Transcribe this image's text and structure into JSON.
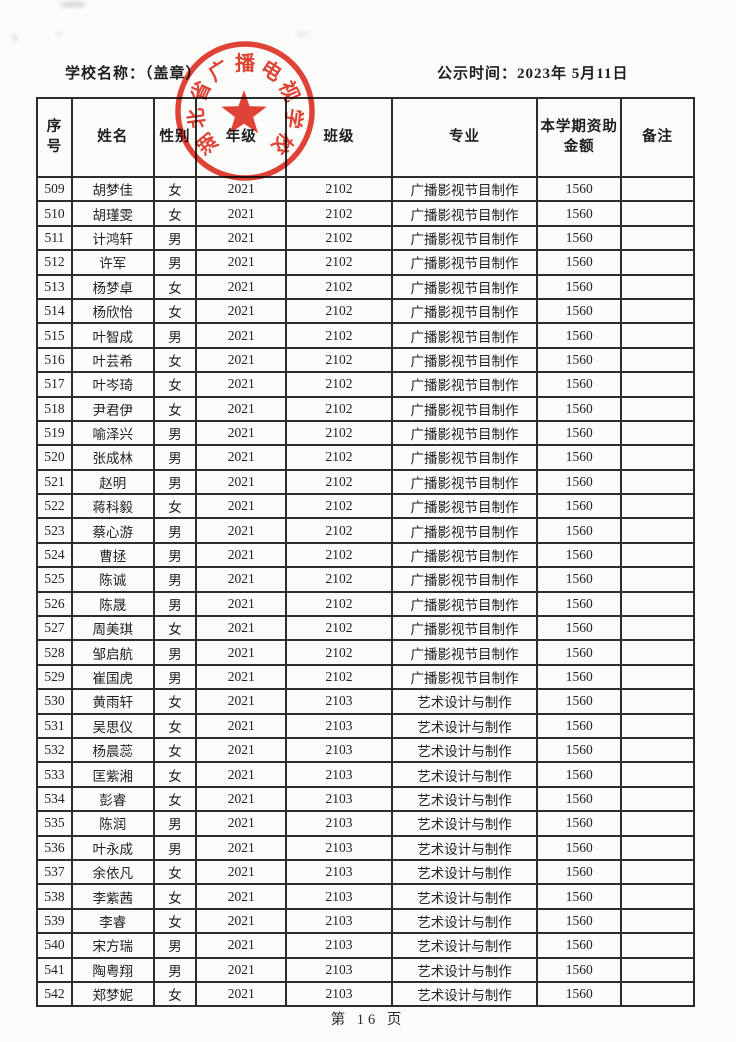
{
  "page": {
    "school_label": "学校名称：",
    "school_value": "（盖章）",
    "publish_label": "公示时间：",
    "publish_value": "2023年 5月11日",
    "footer": "第 16 页"
  },
  "seal": {
    "text": "湖北省广播电视学校",
    "color": "#e03425",
    "shape": "round-seal-with-star"
  },
  "table": {
    "columns": [
      "序号",
      "姓名",
      "性别",
      "年级",
      "班级",
      "专业",
      "本学期资助金额",
      "备注"
    ],
    "rows": [
      [
        "509",
        "胡梦佳",
        "女",
        "2021",
        "2102",
        "广播影视节目制作",
        "1560",
        ""
      ],
      [
        "510",
        "胡瑾雯",
        "女",
        "2021",
        "2102",
        "广播影视节目制作",
        "1560",
        ""
      ],
      [
        "511",
        "计鸿轩",
        "男",
        "2021",
        "2102",
        "广播影视节目制作",
        "1560",
        ""
      ],
      [
        "512",
        "许军",
        "男",
        "2021",
        "2102",
        "广播影视节目制作",
        "1560",
        ""
      ],
      [
        "513",
        "杨梦卓",
        "女",
        "2021",
        "2102",
        "广播影视节目制作",
        "1560",
        ""
      ],
      [
        "514",
        "杨欣怡",
        "女",
        "2021",
        "2102",
        "广播影视节目制作",
        "1560",
        ""
      ],
      [
        "515",
        "叶智成",
        "男",
        "2021",
        "2102",
        "广播影视节目制作",
        "1560",
        ""
      ],
      [
        "516",
        "叶芸希",
        "女",
        "2021",
        "2102",
        "广播影视节目制作",
        "1560",
        ""
      ],
      [
        "517",
        "叶岑琦",
        "女",
        "2021",
        "2102",
        "广播影视节目制作",
        "1560",
        ""
      ],
      [
        "518",
        "尹君伊",
        "女",
        "2021",
        "2102",
        "广播影视节目制作",
        "1560",
        ""
      ],
      [
        "519",
        "喻泽兴",
        "男",
        "2021",
        "2102",
        "广播影视节目制作",
        "1560",
        ""
      ],
      [
        "520",
        "张成林",
        "男",
        "2021",
        "2102",
        "广播影视节目制作",
        "1560",
        ""
      ],
      [
        "521",
        "赵明",
        "男",
        "2021",
        "2102",
        "广播影视节目制作",
        "1560",
        ""
      ],
      [
        "522",
        "蒋科毅",
        "女",
        "2021",
        "2102",
        "广播影视节目制作",
        "1560",
        ""
      ],
      [
        "523",
        "蔡心游",
        "男",
        "2021",
        "2102",
        "广播影视节目制作",
        "1560",
        ""
      ],
      [
        "524",
        "曹拯",
        "男",
        "2021",
        "2102",
        "广播影视节目制作",
        "1560",
        ""
      ],
      [
        "525",
        "陈诚",
        "男",
        "2021",
        "2102",
        "广播影视节目制作",
        "1560",
        ""
      ],
      [
        "526",
        "陈晟",
        "男",
        "2021",
        "2102",
        "广播影视节目制作",
        "1560",
        ""
      ],
      [
        "527",
        "周美琪",
        "女",
        "2021",
        "2102",
        "广播影视节目制作",
        "1560",
        ""
      ],
      [
        "528",
        "邹启航",
        "男",
        "2021",
        "2102",
        "广播影视节目制作",
        "1560",
        ""
      ],
      [
        "529",
        "崔国虎",
        "男",
        "2021",
        "2102",
        "广播影视节目制作",
        "1560",
        ""
      ],
      [
        "530",
        "黄雨轩",
        "女",
        "2021",
        "2103",
        "艺术设计与制作",
        "1560",
        ""
      ],
      [
        "531",
        "吴思仪",
        "女",
        "2021",
        "2103",
        "艺术设计与制作",
        "1560",
        ""
      ],
      [
        "532",
        "杨晨蕊",
        "女",
        "2021",
        "2103",
        "艺术设计与制作",
        "1560",
        ""
      ],
      [
        "533",
        "匡紫湘",
        "女",
        "2021",
        "2103",
        "艺术设计与制作",
        "1560",
        ""
      ],
      [
        "534",
        "彭睿",
        "女",
        "2021",
        "2103",
        "艺术设计与制作",
        "1560",
        ""
      ],
      [
        "535",
        "陈润",
        "男",
        "2021",
        "2103",
        "艺术设计与制作",
        "1560",
        ""
      ],
      [
        "536",
        "叶永成",
        "男",
        "2021",
        "2103",
        "艺术设计与制作",
        "1560",
        ""
      ],
      [
        "537",
        "余依凡",
        "女",
        "2021",
        "2103",
        "艺术设计与制作",
        "1560",
        ""
      ],
      [
        "538",
        "李紫茜",
        "女",
        "2021",
        "2103",
        "艺术设计与制作",
        "1560",
        ""
      ],
      [
        "539",
        "李睿",
        "女",
        "2021",
        "2103",
        "艺术设计与制作",
        "1560",
        ""
      ],
      [
        "540",
        "宋方瑞",
        "男",
        "2021",
        "2103",
        "艺术设计与制作",
        "1560",
        ""
      ],
      [
        "541",
        "陶粤翔",
        "男",
        "2021",
        "2103",
        "艺术设计与制作",
        "1560",
        ""
      ],
      [
        "542",
        "郑梦妮",
        "女",
        "2021",
        "2103",
        "艺术设计与制作",
        "1560",
        ""
      ]
    ]
  }
}
